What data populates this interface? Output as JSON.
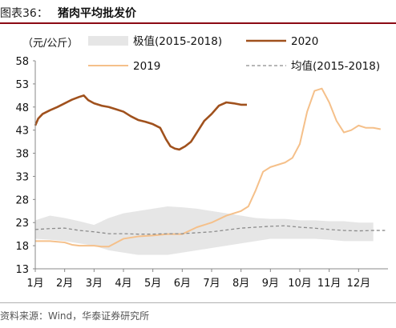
{
  "header": {
    "label": "图表36：",
    "title": "猪肉平均批发价"
  },
  "source": "资料来源：Wind，华泰证券研究所",
  "chart_data": {
    "type": "line",
    "title": "猪肉平均批发价",
    "ylabel": "（元/公斤）",
    "unit": "（元/公斤）",
    "ylim": [
      13,
      58
    ],
    "yticks": [
      13,
      18,
      23,
      28,
      33,
      38,
      43,
      48,
      53,
      58
    ],
    "categories": [
      "1月",
      "2月",
      "3月",
      "4月",
      "5月",
      "6月",
      "7月",
      "8月",
      "9月",
      "10月",
      "11月",
      "12月"
    ],
    "grid": false,
    "legend_position": "top",
    "series": [
      {
        "name": "极值(2015-2018)",
        "kind": "band",
        "color": "#e6e6e6",
        "x": [
          1,
          1.5,
          2,
          2.5,
          3,
          3.5,
          4,
          4.5,
          5,
          5.5,
          6,
          6.5,
          7,
          7.5,
          8,
          8.5,
          9,
          9.5,
          10,
          10.5,
          11,
          11.5,
          12,
          12.5
        ],
        "upper": [
          23.5,
          24.5,
          24.0,
          23.3,
          22.5,
          24.0,
          25.0,
          25.5,
          26.0,
          26.5,
          26.3,
          26.0,
          25.5,
          25.0,
          24.5,
          24.0,
          23.8,
          23.8,
          23.5,
          23.5,
          23.3,
          23.3,
          23.0,
          23.0
        ],
        "lower": [
          19.5,
          19.3,
          19.0,
          18.5,
          18.0,
          17.0,
          16.5,
          16.0,
          16.0,
          16.0,
          16.5,
          17.0,
          17.5,
          18.0,
          18.5,
          19.0,
          19.5,
          19.5,
          19.5,
          19.5,
          19.3,
          19.0,
          19.0,
          19.0
        ]
      },
      {
        "name": "2020",
        "color": "#a0511d",
        "x": [
          1.0,
          1.1,
          1.25,
          1.5,
          1.75,
          2.0,
          2.25,
          2.5,
          2.65,
          2.8,
          3.0,
          3.25,
          3.5,
          3.75,
          4.0,
          4.25,
          4.5,
          4.75,
          5.0,
          5.25,
          5.45,
          5.6,
          5.75,
          5.9,
          6.1,
          6.3,
          6.5,
          6.75,
          7.0,
          7.25,
          7.5,
          7.75,
          8.0,
          8.2
        ],
        "values": [
          44.0,
          45.5,
          46.5,
          47.3,
          48.0,
          48.8,
          49.6,
          50.2,
          50.5,
          49.5,
          48.8,
          48.3,
          48.0,
          47.5,
          47.0,
          46.0,
          45.2,
          44.8,
          44.3,
          43.5,
          41.0,
          39.5,
          39.0,
          38.8,
          39.5,
          40.5,
          42.5,
          45.0,
          46.5,
          48.3,
          49.0,
          48.8,
          48.5,
          48.5
        ]
      },
      {
        "name": "2019",
        "color": "#f5c08a",
        "x": [
          1.0,
          1.5,
          2.0,
          2.25,
          2.5,
          3.0,
          3.25,
          3.5,
          4.0,
          4.5,
          5.0,
          5.5,
          6.0,
          6.5,
          7.0,
          7.5,
          7.75,
          8.0,
          8.25,
          8.5,
          8.75,
          9.0,
          9.25,
          9.5,
          9.75,
          10.0,
          10.25,
          10.5,
          10.75,
          11.0,
          11.25,
          11.5,
          11.75,
          12.0,
          12.25,
          12.5,
          12.75
        ],
        "values": [
          19.0,
          19.0,
          18.7,
          18.2,
          18.0,
          18.0,
          17.8,
          17.8,
          19.5,
          20.0,
          20.2,
          20.5,
          20.5,
          22.0,
          23.0,
          24.5,
          25.0,
          25.5,
          26.5,
          30.0,
          34.0,
          35.0,
          35.5,
          36.0,
          37.0,
          40.0,
          47.0,
          51.5,
          52.0,
          49.0,
          45.0,
          42.5,
          43.0,
          44.0,
          43.5,
          43.5,
          43.2
        ]
      },
      {
        "name": "均值(2015-2018)",
        "color": "#8c8c8c",
        "dashed": true,
        "x": [
          1.0,
          1.5,
          2.0,
          2.5,
          3.0,
          3.5,
          4.0,
          4.5,
          5.0,
          5.5,
          6.0,
          6.5,
          7.0,
          7.5,
          8.0,
          8.5,
          9.0,
          9.5,
          10.0,
          10.5,
          11.0,
          11.5,
          12.0,
          12.5,
          12.9
        ],
        "values": [
          21.5,
          21.7,
          21.8,
          21.3,
          21.0,
          20.6,
          20.6,
          20.5,
          20.5,
          20.6,
          20.6,
          20.8,
          21.0,
          21.4,
          21.8,
          22.0,
          22.2,
          22.3,
          22.0,
          21.8,
          21.5,
          21.3,
          21.2,
          21.3,
          21.3
        ]
      }
    ]
  }
}
